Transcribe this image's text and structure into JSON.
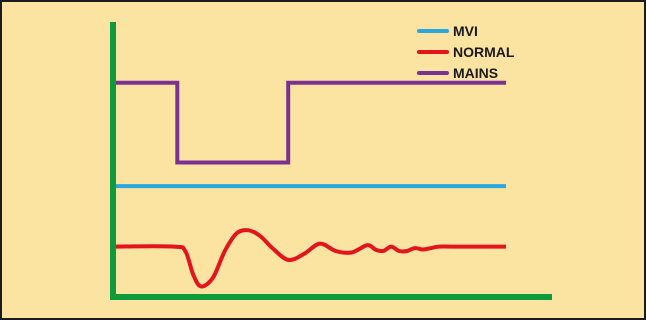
{
  "colors": {
    "background": "#fbe3a1",
    "frame": "#1b1b1b",
    "axis": "#0f9b3c"
  },
  "chart_data": {
    "type": "line",
    "title": "",
    "xlabel": "",
    "ylabel": "",
    "grid": false,
    "legend_position": "top-right",
    "xlim": [
      0,
      100
    ],
    "ylim": [
      0,
      100
    ],
    "series": [
      {
        "name": "MVI",
        "color": "#29a8e0",
        "x": [
          0,
          100
        ],
        "y": [
          42,
          42
        ]
      },
      {
        "name": "NORMAL",
        "color": "#e3141b",
        "x": [
          0,
          16,
          19,
          21,
          23,
          26,
          29,
          32,
          35,
          38,
          41,
          45,
          49,
          53,
          57,
          61,
          65,
          67,
          69,
          71,
          73,
          75,
          77,
          79,
          81,
          83,
          86,
          90,
          95,
          100
        ],
        "y": [
          21.5,
          21.5,
          20,
          12,
          8,
          11,
          20,
          26,
          27,
          25,
          21,
          17,
          19,
          22.5,
          20,
          19.5,
          22,
          20.5,
          20,
          21.5,
          20,
          20,
          21,
          20.5,
          21,
          21.5,
          21.5,
          21.5,
          21.5,
          21.5
        ]
      },
      {
        "name": "MAINS",
        "color": "#7b3194",
        "x": [
          0,
          17,
          17,
          45,
          45,
          100
        ],
        "y": [
          77,
          77,
          50,
          50,
          77,
          77
        ]
      }
    ]
  }
}
